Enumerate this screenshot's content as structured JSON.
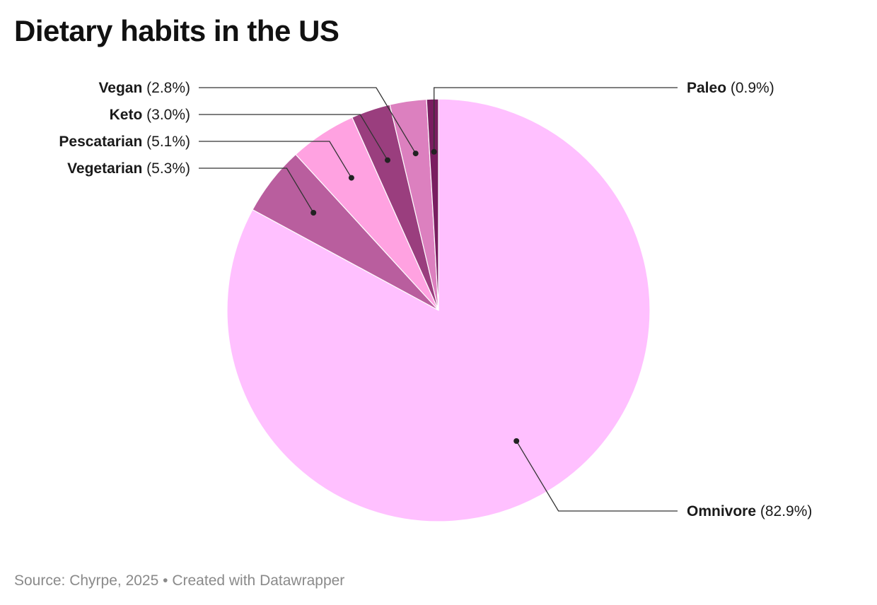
{
  "title": "Dietary habits in the US",
  "footer": {
    "source": "Source: Chyrpe, 2025",
    "separator": "•",
    "credit": "Created with Datawrapper"
  },
  "chart_data": {
    "type": "pie",
    "title": "Dietary habits in the US",
    "unit": "%",
    "slices": [
      {
        "label": "Omnivore",
        "value": 82.9,
        "display": "(82.9%)",
        "color": "#ffc0ff"
      },
      {
        "label": "Vegetarian",
        "value": 5.3,
        "display": "(5.3%)",
        "color": "#b95e9e"
      },
      {
        "label": "Pescatarian",
        "value": 5.1,
        "display": "(5.1%)",
        "color": "#ffa2e1"
      },
      {
        "label": "Keto",
        "value": 3.0,
        "display": "(3.0%)",
        "color": "#9a3e7e"
      },
      {
        "label": "Vegan",
        "value": 2.8,
        "display": "(2.8%)",
        "color": "#dc80bf"
      },
      {
        "label": "Paleo",
        "value": 0.9,
        "display": "(0.9%)",
        "color": "#791e60"
      }
    ]
  }
}
